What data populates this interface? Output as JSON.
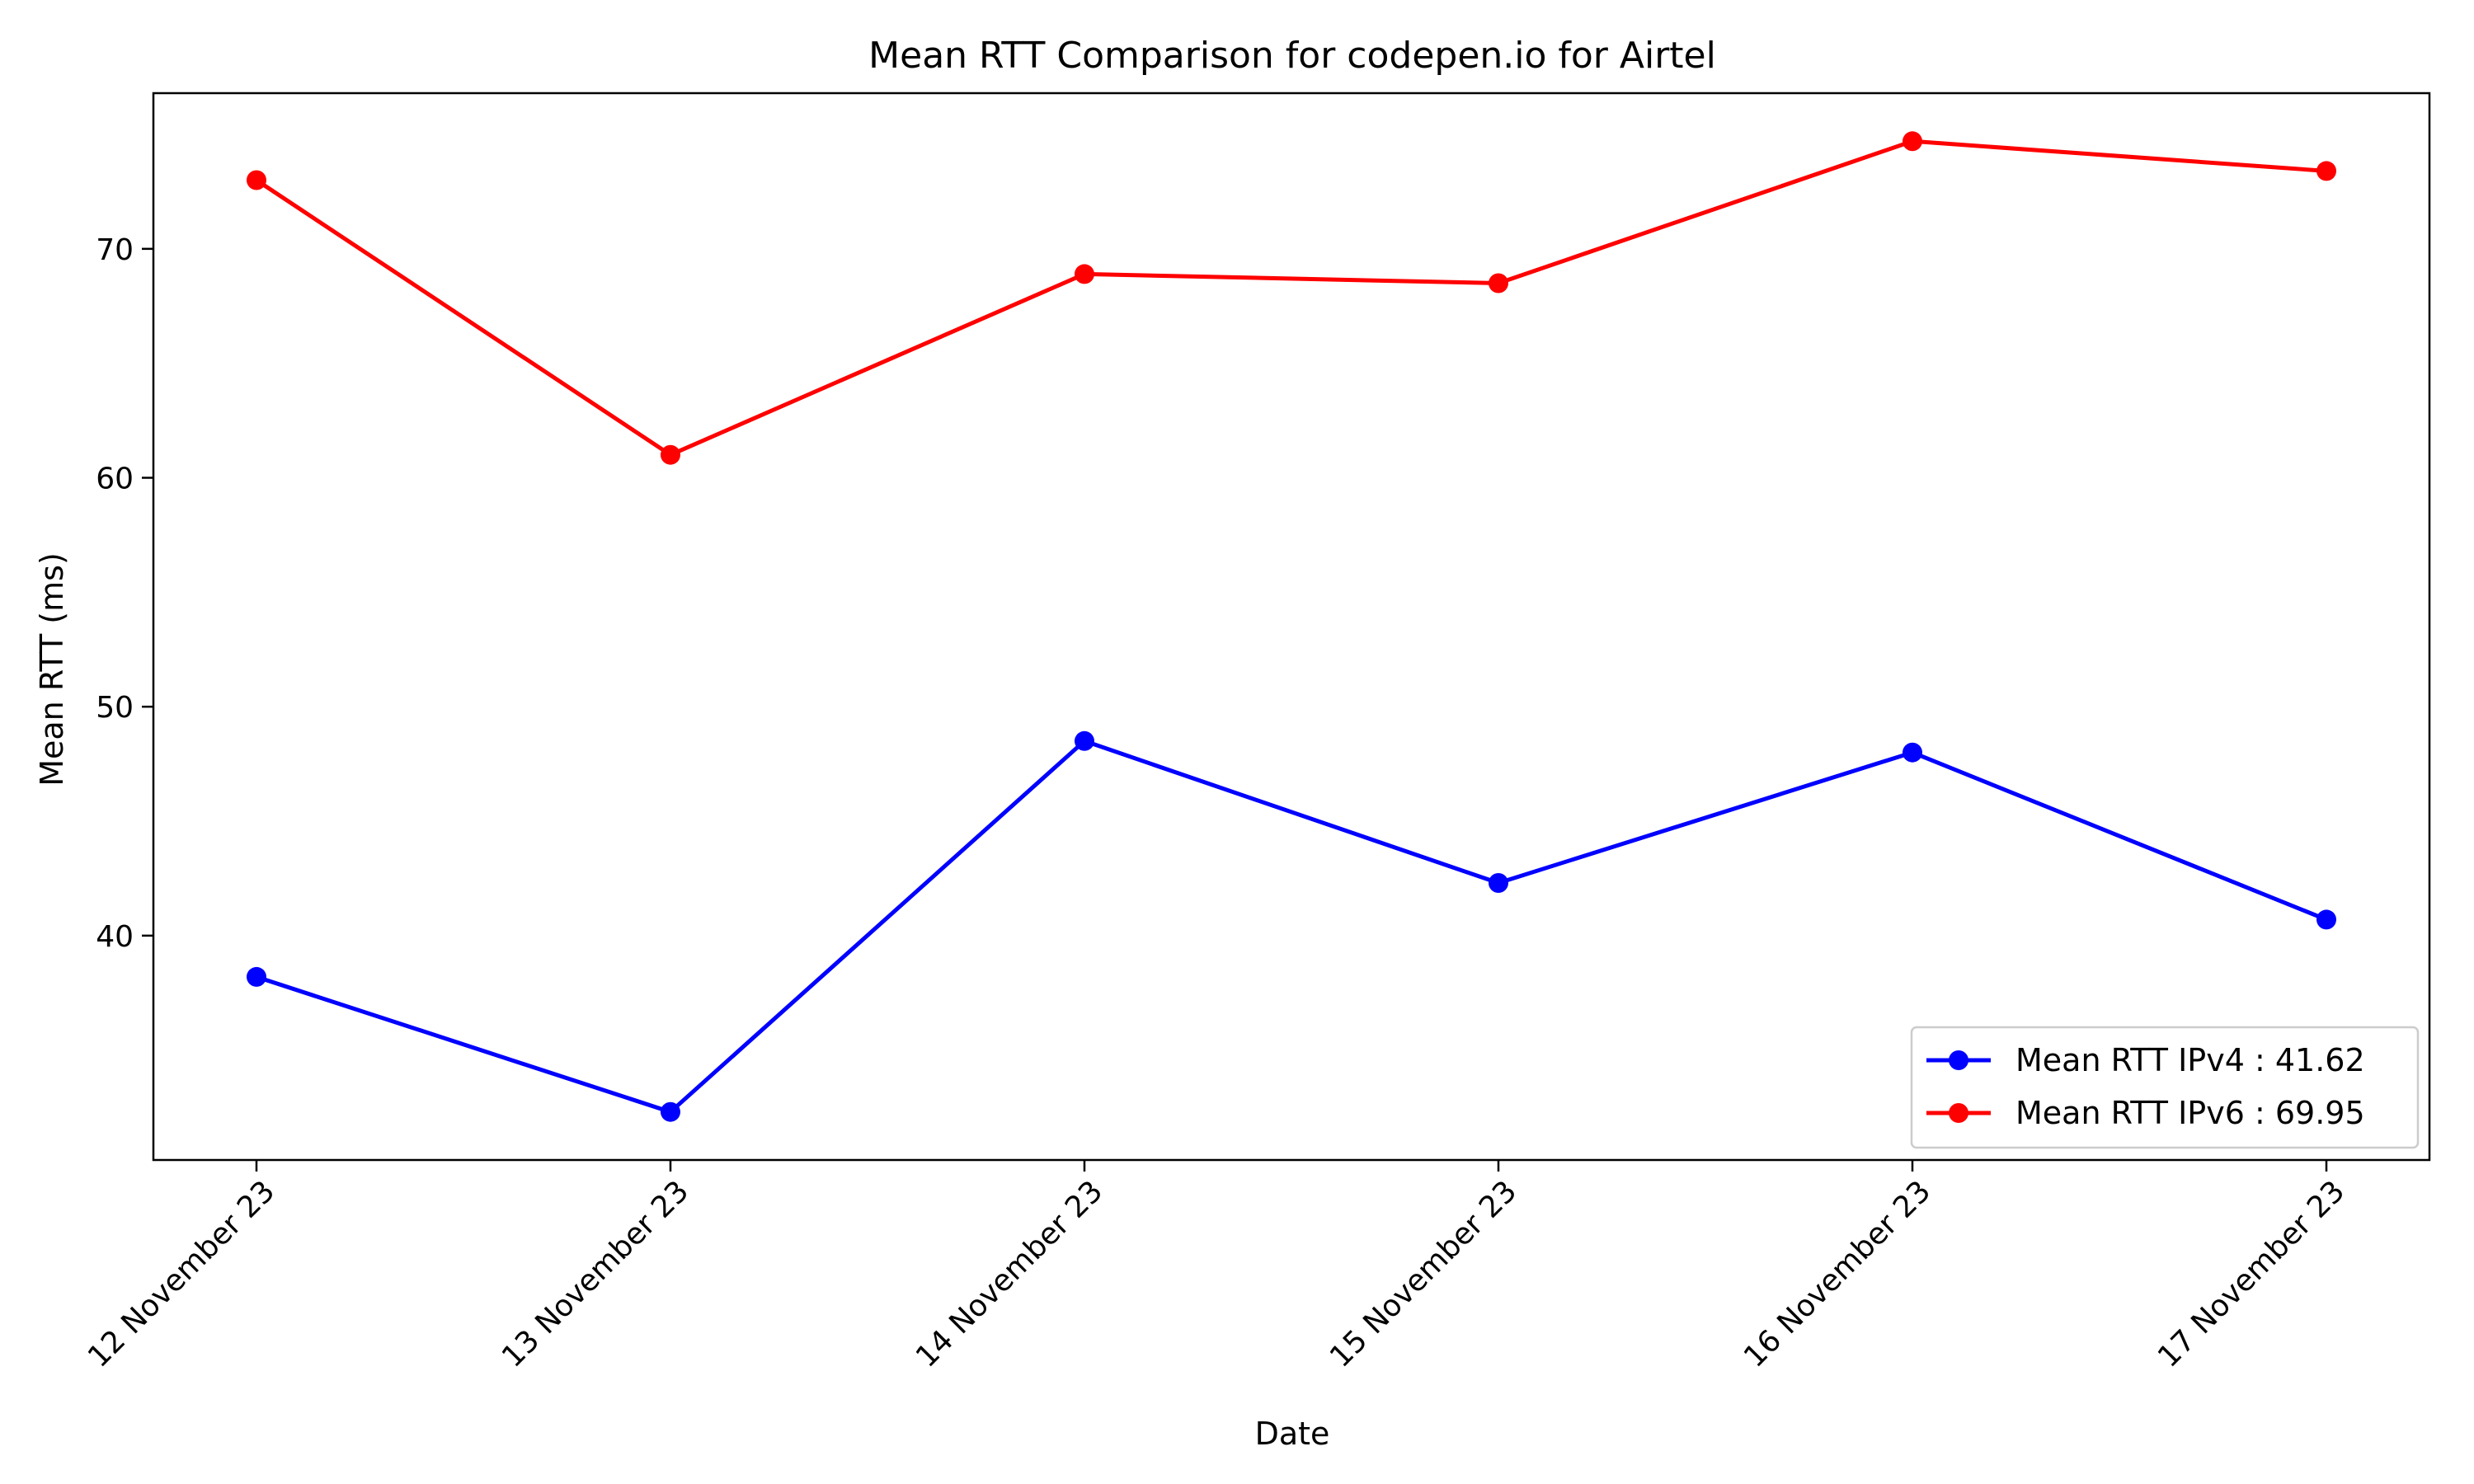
{
  "chart_data": {
    "type": "line",
    "title": "Mean RTT Comparison for codepen.io for Airtel",
    "xlabel": "Date",
    "ylabel": "Mean RTT (ms)",
    "categories": [
      "12 November 23",
      "13 November 23",
      "14 November 23",
      "15 November 23",
      "16 November 23",
      "17 November 23"
    ],
    "ylim": [
      30.2,
      76.8
    ],
    "yticks": [
      40,
      50,
      60,
      70
    ],
    "grid": false,
    "legend_position": "lower-right",
    "series": [
      {
        "name": "Mean RTT IPv4 : 41.62",
        "color": "#0000ff",
        "marker": "circle",
        "values": [
          38.2,
          32.3,
          48.5,
          42.3,
          48.0,
          40.7
        ]
      },
      {
        "name": "Mean RTT IPv6 : 69.95",
        "color": "#ff0000",
        "marker": "circle",
        "values": [
          73.0,
          61.0,
          68.9,
          68.5,
          74.7,
          73.4
        ]
      }
    ]
  }
}
